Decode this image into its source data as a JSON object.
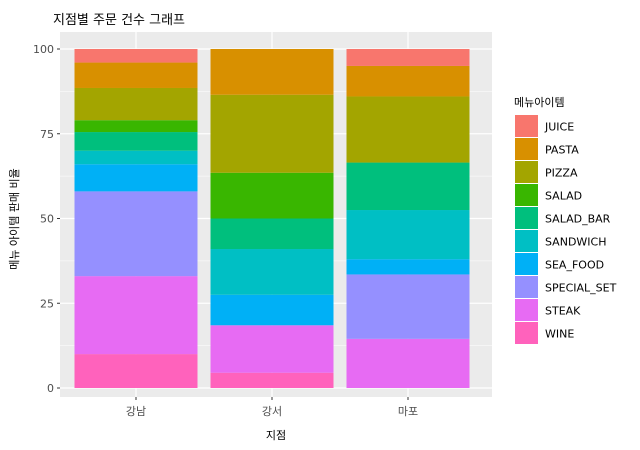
{
  "chart_data": {
    "type": "bar",
    "stacked": true,
    "title": "지점별 주문 건수 그래프",
    "xlabel": "지점",
    "ylabel": "메뉴 아이템 판매 비율",
    "categories": [
      "강남",
      "강서",
      "마포"
    ],
    "ylim": [
      0,
      100
    ],
    "yticks": [
      0,
      25,
      50,
      75,
      100
    ],
    "grid": true,
    "legend_title": "메뉴아이템",
    "legend_position": "right",
    "series": [
      {
        "name": "JUICE",
        "color": "#F8766D",
        "values": [
          4.0,
          0.0,
          5.0
        ]
      },
      {
        "name": "PASTA",
        "color": "#D89000",
        "values": [
          7.5,
          13.5,
          9.0
        ]
      },
      {
        "name": "PIZZA",
        "color": "#A3A500",
        "values": [
          9.5,
          23.0,
          19.5
        ]
      },
      {
        "name": "SALAD",
        "color": "#39B600",
        "values": [
          3.5,
          13.5,
          0.0
        ]
      },
      {
        "name": "SALAD_BAR",
        "color": "#00BF7D",
        "values": [
          5.5,
          9.0,
          14.0
        ]
      },
      {
        "name": "SANDWICH",
        "color": "#00BFC4",
        "values": [
          4.0,
          13.5,
          14.5
        ]
      },
      {
        "name": "SEA_FOOD",
        "color": "#00B0F6",
        "values": [
          8.0,
          9.0,
          4.5
        ]
      },
      {
        "name": "SPECIAL_SET",
        "color": "#9590FF",
        "values": [
          25.0,
          0.0,
          19.0
        ]
      },
      {
        "name": "STEAK",
        "color": "#E76BF3",
        "values": [
          23.0,
          14.0,
          14.5
        ]
      },
      {
        "name": "WINE",
        "color": "#FF62BC",
        "values": [
          10.0,
          4.5,
          0.0
        ]
      }
    ]
  }
}
